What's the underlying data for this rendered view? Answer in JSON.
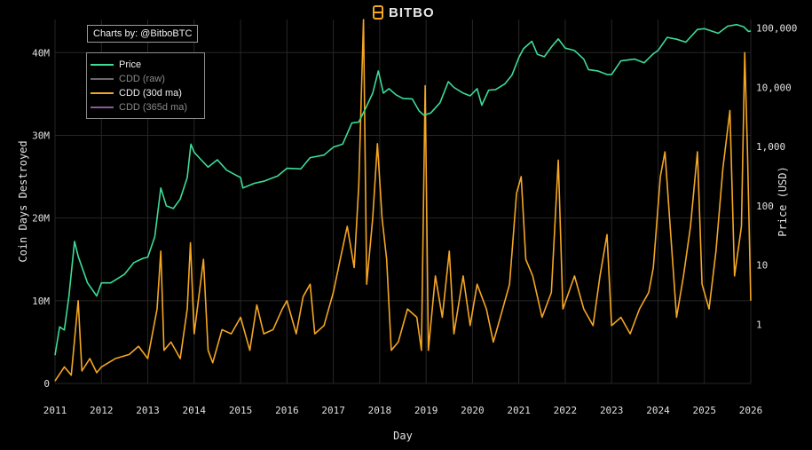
{
  "brand": {
    "name": "BITBO",
    "logo_icon": "bitbo-logo-icon"
  },
  "credit": "Charts by: @BitboBTC",
  "legend": [
    {
      "label": "Price",
      "color": "#3ddc97"
    },
    {
      "label": "CDD (raw)",
      "color": "#6a6a6a"
    },
    {
      "label": "CDD (30d ma)",
      "color": "#f5a623"
    },
    {
      "label": "CDD (365d ma)",
      "color": "#8a5a9a"
    }
  ],
  "chart_data": {
    "type": "line",
    "xlabel": "Day",
    "ylabel_left": "Coin Days Destroyed",
    "ylabel_right": "Price (USD)",
    "x_ticks": [
      "2011",
      "2012",
      "2013",
      "2014",
      "2015",
      "2016",
      "2017",
      "2018",
      "2019",
      "2020",
      "2021",
      "2022",
      "2023",
      "2024",
      "2025",
      "2026"
    ],
    "y_left_ticks": [
      {
        "value": 0,
        "label": "0"
      },
      {
        "value": 10000000,
        "label": "10M"
      },
      {
        "value": 20000000,
        "label": "20M"
      },
      {
        "value": 30000000,
        "label": "30M"
      },
      {
        "value": 40000000,
        "label": "40M"
      }
    ],
    "y_right_ticks": [
      {
        "value": 1,
        "label": "1"
      },
      {
        "value": 10,
        "label": "10"
      },
      {
        "value": 100,
        "label": "100"
      },
      {
        "value": 1000,
        "label": "1,000"
      },
      {
        "value": 10000,
        "label": "10,000"
      },
      {
        "value": 100000,
        "label": "100,000"
      }
    ],
    "ylim_left": [
      0,
      44000000
    ],
    "ylim_right_log": [
      0.1,
      140000
    ],
    "grid": true,
    "legend_position": "top-left",
    "series": [
      {
        "name": "Price",
        "axis": "right",
        "scale": "log",
        "color": "#3ddc97",
        "points": [
          [
            2011.0,
            0.3
          ],
          [
            2011.1,
            0.9
          ],
          [
            2011.2,
            0.8
          ],
          [
            2011.3,
            3
          ],
          [
            2011.42,
            25
          ],
          [
            2011.5,
            14
          ],
          [
            2011.7,
            5
          ],
          [
            2011.9,
            3
          ],
          [
            2012.0,
            5
          ],
          [
            2012.2,
            5
          ],
          [
            2012.5,
            7
          ],
          [
            2012.7,
            11
          ],
          [
            2012.9,
            13
          ],
          [
            2013.0,
            13.5
          ],
          [
            2013.15,
            30
          ],
          [
            2013.28,
            200
          ],
          [
            2013.4,
            100
          ],
          [
            2013.55,
            90
          ],
          [
            2013.7,
            130
          ],
          [
            2013.85,
            300
          ],
          [
            2013.93,
            1100
          ],
          [
            2014.0,
            800
          ],
          [
            2014.15,
            600
          ],
          [
            2014.3,
            450
          ],
          [
            2014.5,
            600
          ],
          [
            2014.7,
            400
          ],
          [
            2014.9,
            330
          ],
          [
            2015.0,
            300
          ],
          [
            2015.05,
            200
          ],
          [
            2015.3,
            240
          ],
          [
            2015.5,
            260
          ],
          [
            2015.8,
            320
          ],
          [
            2016.0,
            430
          ],
          [
            2016.3,
            420
          ],
          [
            2016.5,
            650
          ],
          [
            2016.8,
            720
          ],
          [
            2017.0,
            980
          ],
          [
            2017.2,
            1100
          ],
          [
            2017.4,
            2500
          ],
          [
            2017.55,
            2600
          ],
          [
            2017.7,
            4500
          ],
          [
            2017.85,
            8000
          ],
          [
            2017.97,
            19000
          ],
          [
            2018.08,
            8000
          ],
          [
            2018.2,
            9500
          ],
          [
            2018.35,
            7500
          ],
          [
            2018.5,
            6500
          ],
          [
            2018.7,
            6400
          ],
          [
            2018.85,
            4000
          ],
          [
            2018.95,
            3400
          ],
          [
            2019.1,
            3700
          ],
          [
            2019.3,
            5500
          ],
          [
            2019.48,
            12500
          ],
          [
            2019.6,
            10000
          ],
          [
            2019.8,
            8000
          ],
          [
            2019.95,
            7200
          ],
          [
            2020.1,
            9500
          ],
          [
            2020.2,
            5000
          ],
          [
            2020.35,
            9000
          ],
          [
            2020.5,
            9200
          ],
          [
            2020.7,
            11500
          ],
          [
            2020.85,
            16000
          ],
          [
            2021.0,
            32000
          ],
          [
            2021.1,
            45000
          ],
          [
            2021.28,
            60000
          ],
          [
            2021.4,
            36000
          ],
          [
            2021.55,
            33000
          ],
          [
            2021.7,
            48000
          ],
          [
            2021.85,
            66000
          ],
          [
            2022.0,
            46000
          ],
          [
            2022.2,
            42000
          ],
          [
            2022.4,
            30000
          ],
          [
            2022.5,
            20000
          ],
          [
            2022.7,
            19000
          ],
          [
            2022.9,
            16500
          ],
          [
            2023.0,
            16500
          ],
          [
            2023.2,
            28000
          ],
          [
            2023.5,
            30000
          ],
          [
            2023.7,
            26000
          ],
          [
            2023.9,
            37000
          ],
          [
            2024.0,
            42000
          ],
          [
            2024.2,
            70000
          ],
          [
            2024.4,
            65000
          ],
          [
            2024.6,
            58000
          ],
          [
            2024.85,
            95000
          ],
          [
            2025.0,
            98000
          ],
          [
            2025.3,
            82000
          ],
          [
            2025.5,
            108000
          ],
          [
            2025.7,
            115000
          ],
          [
            2025.85,
            105000
          ],
          [
            2025.95,
            88000
          ],
          [
            2026.0,
            90000
          ]
        ]
      },
      {
        "name": "CDD (30d ma)",
        "axis": "left",
        "color": "#f5a623",
        "points": [
          [
            2011.0,
            300000
          ],
          [
            2011.2,
            2000000
          ],
          [
            2011.35,
            1000000
          ],
          [
            2011.5,
            10000000
          ],
          [
            2011.58,
            1500000
          ],
          [
            2011.75,
            3000000
          ],
          [
            2011.9,
            1300000
          ],
          [
            2012.0,
            2000000
          ],
          [
            2012.3,
            3000000
          ],
          [
            2012.6,
            3500000
          ],
          [
            2012.8,
            4500000
          ],
          [
            2013.0,
            3000000
          ],
          [
            2013.2,
            9000000
          ],
          [
            2013.28,
            16000000
          ],
          [
            2013.35,
            4000000
          ],
          [
            2013.5,
            5000000
          ],
          [
            2013.7,
            3000000
          ],
          [
            2013.85,
            9000000
          ],
          [
            2013.92,
            17000000
          ],
          [
            2014.0,
            6000000
          ],
          [
            2014.2,
            15000000
          ],
          [
            2014.3,
            4000000
          ],
          [
            2014.4,
            2500000
          ],
          [
            2014.6,
            6500000
          ],
          [
            2014.8,
            6000000
          ],
          [
            2015.0,
            8000000
          ],
          [
            2015.2,
            4000000
          ],
          [
            2015.35,
            9500000
          ],
          [
            2015.5,
            6000000
          ],
          [
            2015.7,
            6500000
          ],
          [
            2015.9,
            9000000
          ],
          [
            2016.0,
            10000000
          ],
          [
            2016.2,
            6000000
          ],
          [
            2016.35,
            10500000
          ],
          [
            2016.5,
            12000000
          ],
          [
            2016.6,
            6000000
          ],
          [
            2016.8,
            7000000
          ],
          [
            2017.0,
            11000000
          ],
          [
            2017.15,
            15000000
          ],
          [
            2017.3,
            19000000
          ],
          [
            2017.45,
            14000000
          ],
          [
            2017.55,
            24000000
          ],
          [
            2017.65,
            44000000
          ],
          [
            2017.72,
            12000000
          ],
          [
            2017.85,
            20000000
          ],
          [
            2017.95,
            29000000
          ],
          [
            2018.05,
            20000000
          ],
          [
            2018.15,
            15000000
          ],
          [
            2018.25,
            4000000
          ],
          [
            2018.4,
            5000000
          ],
          [
            2018.6,
            9000000
          ],
          [
            2018.8,
            8000000
          ],
          [
            2018.9,
            4000000
          ],
          [
            2018.98,
            36000000
          ],
          [
            2019.05,
            4000000
          ],
          [
            2019.2,
            13000000
          ],
          [
            2019.35,
            8000000
          ],
          [
            2019.5,
            16000000
          ],
          [
            2019.6,
            6000000
          ],
          [
            2019.8,
            13000000
          ],
          [
            2019.95,
            7000000
          ],
          [
            2020.1,
            12000000
          ],
          [
            2020.3,
            9000000
          ],
          [
            2020.45,
            5000000
          ],
          [
            2020.6,
            8000000
          ],
          [
            2020.8,
            12000000
          ],
          [
            2020.95,
            23000000
          ],
          [
            2021.05,
            25000000
          ],
          [
            2021.15,
            15000000
          ],
          [
            2021.3,
            13000000
          ],
          [
            2021.5,
            8000000
          ],
          [
            2021.7,
            11000000
          ],
          [
            2021.85,
            27000000
          ],
          [
            2021.95,
            9000000
          ],
          [
            2022.2,
            13000000
          ],
          [
            2022.4,
            9000000
          ],
          [
            2022.6,
            7000000
          ],
          [
            2022.75,
            13000000
          ],
          [
            2022.9,
            18000000
          ],
          [
            2023.0,
            7000000
          ],
          [
            2023.2,
            8000000
          ],
          [
            2023.4,
            6000000
          ],
          [
            2023.6,
            9000000
          ],
          [
            2023.8,
            11000000
          ],
          [
            2023.9,
            14000000
          ],
          [
            2024.05,
            25000000
          ],
          [
            2024.15,
            28000000
          ],
          [
            2024.25,
            20000000
          ],
          [
            2024.4,
            8000000
          ],
          [
            2024.55,
            13000000
          ],
          [
            2024.7,
            19000000
          ],
          [
            2024.85,
            28000000
          ],
          [
            2024.95,
            12000000
          ],
          [
            2025.1,
            9000000
          ],
          [
            2025.25,
            16000000
          ],
          [
            2025.4,
            26000000
          ],
          [
            2025.55,
            33000000
          ],
          [
            2025.65,
            13000000
          ],
          [
            2025.8,
            19000000
          ],
          [
            2025.87,
            40000000
          ],
          [
            2025.93,
            28000000
          ],
          [
            2026.0,
            10000000
          ]
        ]
      }
    ]
  }
}
